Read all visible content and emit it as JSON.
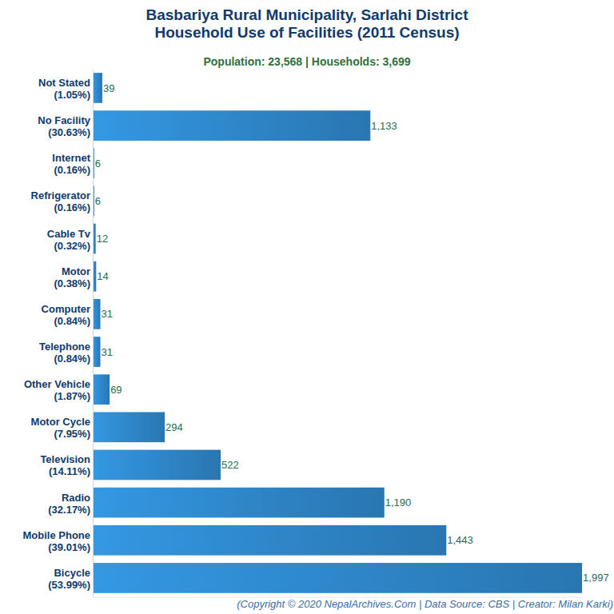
{
  "chart_data": {
    "type": "bar",
    "orientation": "horizontal",
    "title": "Basbariya Rural Municipality, Sarlahi District\nHousehold Use of Facilities (2011 Census)",
    "subtitle": "Population: 23,568 | Households: 3,699",
    "caption": "(Copyright © 2020 NepalArchives.Com | Data Source: CBS | Creator: Milan Karki)",
    "categories": [
      "Not Stated",
      "No Facility",
      "Internet",
      "Refrigerator",
      "Cable Tv",
      "Motor",
      "Computer",
      "Telephone",
      "Other Vehicle",
      "Motor Cycle",
      "Television",
      "Radio",
      "Mobile Phone",
      "Bicycle"
    ],
    "category_notes": [
      "(1.05%)",
      "(30.63%)",
      "(0.16%)",
      "(0.16%)",
      "(0.32%)",
      "(0.38%)",
      "(0.84%)",
      "(0.84%)",
      "(1.87%)",
      "(7.95%)",
      "(14.11%)",
      "(32.17%)",
      "(39.01%)",
      "(53.99%)"
    ],
    "values": [
      39,
      1133,
      6,
      6,
      12,
      14,
      31,
      31,
      69,
      294,
      522,
      1190,
      1443,
      1997
    ],
    "value_labels": [
      "39",
      "1,133",
      "6",
      "6",
      "12",
      "14",
      "31",
      "31",
      "69",
      "294",
      "522",
      "1,190",
      "1,443",
      "1,997"
    ],
    "color": "#2e86c8",
    "xlim": [
      0,
      2000
    ],
    "xticks": [],
    "tick_labels": "y",
    "grid": false,
    "data_labels": true
  }
}
